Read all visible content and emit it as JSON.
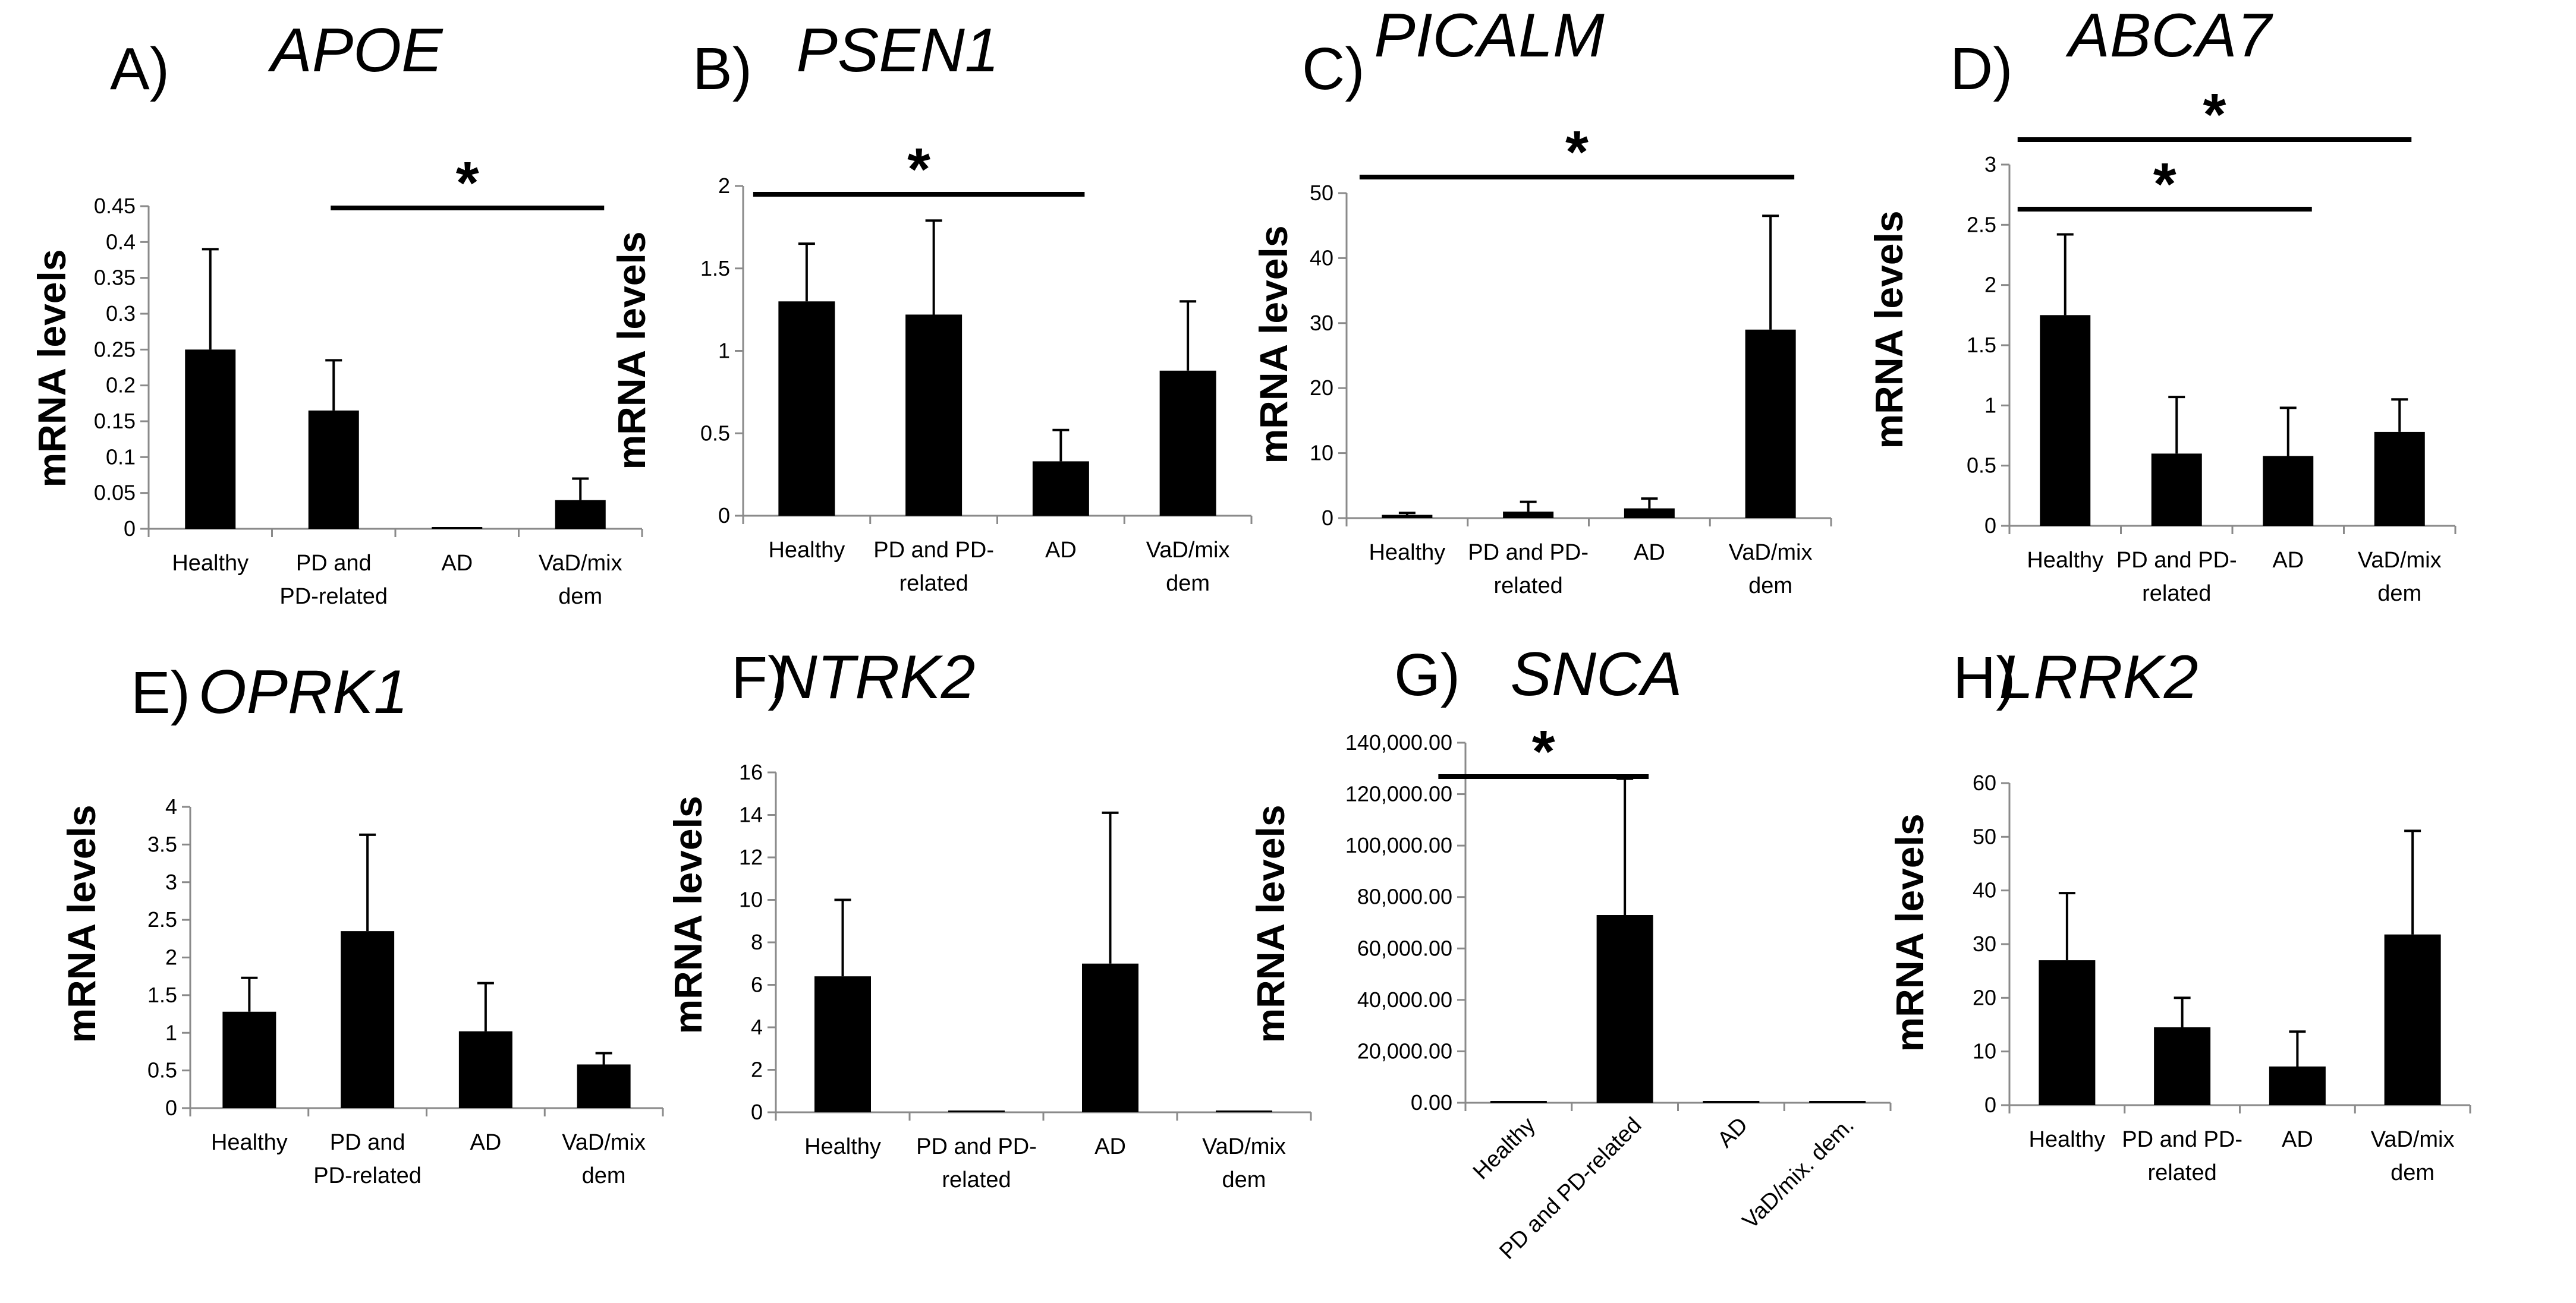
{
  "figure_type": "bar chart panels",
  "chart_data": [
    {
      "type": "bar",
      "panel": "A)",
      "title": "APOE",
      "ylabel": "mRNA levels",
      "categories": [
        "Healthy",
        "PD and PD-related",
        "AD",
        "VaD/mix dem"
      ],
      "category_lines": [
        [
          "Healthy"
        ],
        [
          "PD and",
          "PD-related"
        ],
        [
          "AD"
        ],
        [
          "VaD/mix",
          "dem"
        ]
      ],
      "values": [
        0.25,
        0.165,
        0.002,
        0.04
      ],
      "errors": [
        0.14,
        0.07,
        0.0,
        0.03
      ],
      "ylim": [
        0,
        0.45
      ],
      "ticks": [
        "0",
        "0.05",
        "0.1",
        "0.15",
        "0.2",
        "0.25",
        "0.3",
        "0.35",
        "0.4",
        "0.45"
      ],
      "significance": [
        {
          "from": 1,
          "to": 3,
          "label": "*"
        }
      ]
    },
    {
      "type": "bar",
      "panel": "B)",
      "title": "PSEN1",
      "ylabel": "mRNA levels",
      "categories": [
        "Healthy",
        "PD and PD-related",
        "AD",
        "VaD/mix dem"
      ],
      "category_lines": [
        [
          "Healthy"
        ],
        [
          "PD and PD-",
          "related"
        ],
        [
          "AD"
        ],
        [
          "VaD/mix",
          "dem"
        ]
      ],
      "values": [
        1.3,
        1.22,
        0.33,
        0.88
      ],
      "errors": [
        0.35,
        0.57,
        0.19,
        0.42
      ],
      "ylim": [
        0,
        2
      ],
      "ticks": [
        "0",
        "0.5",
        "1",
        "1.5",
        "2"
      ],
      "significance": [
        {
          "from": 0,
          "to": 2,
          "label": "*"
        }
      ]
    },
    {
      "type": "bar",
      "panel": "C)",
      "title": "PICALM",
      "ylabel": "mRNA levels",
      "categories": [
        "Healthy",
        "PD and PD-related",
        "AD",
        "VaD/mix dem"
      ],
      "category_lines": [
        [
          "Healthy"
        ],
        [
          "PD and PD-",
          "related"
        ],
        [
          "AD"
        ],
        [
          "VaD/mix",
          "dem"
        ]
      ],
      "values": [
        0.5,
        1.0,
        1.5,
        29.0
      ],
      "errors": [
        0.3,
        1.5,
        1.5,
        17.5
      ],
      "ylim": [
        0,
        50
      ],
      "ticks": [
        "0",
        "10",
        "20",
        "30",
        "40",
        "50"
      ],
      "significance": [
        {
          "from": 0,
          "to": 3,
          "label": "*"
        }
      ]
    },
    {
      "type": "bar",
      "panel": "D)",
      "title": "ABCA7",
      "ylabel": "mRNA levels",
      "categories": [
        "Healthy",
        "PD and PD-related",
        "AD",
        "VaD/mix dem"
      ],
      "category_lines": [
        [
          "Healthy"
        ],
        [
          "PD and PD-",
          "related"
        ],
        [
          "AD"
        ],
        [
          "VaD/mix",
          "dem"
        ]
      ],
      "values": [
        1.75,
        0.6,
        0.58,
        0.78
      ],
      "errors": [
        0.67,
        0.47,
        0.4,
        0.27
      ],
      "ylim": [
        0,
        3
      ],
      "ticks": [
        "0",
        "0.5",
        "1",
        "1.5",
        "2",
        "2.5",
        "3"
      ],
      "significance": [
        {
          "from": 0,
          "to": 2,
          "label": "*"
        },
        {
          "from": 0,
          "to": 3,
          "label": "*"
        }
      ]
    },
    {
      "type": "bar",
      "panel": "E)",
      "title": "OPRK1",
      "ylabel": "mRNA levels",
      "categories": [
        "Healthy",
        "PD and PD-related",
        "AD",
        "VaD/mix dem"
      ],
      "category_lines": [
        [
          "Healthy"
        ],
        [
          "PD and",
          "PD-related"
        ],
        [
          "AD"
        ],
        [
          "VaD/mix",
          "dem"
        ]
      ],
      "values": [
        1.28,
        2.35,
        1.02,
        0.58
      ],
      "errors": [
        0.45,
        1.28,
        0.64,
        0.15
      ],
      "ylim": [
        0,
        4
      ],
      "ticks": [
        "0",
        "0.5",
        "1",
        "1.5",
        "2",
        "2.5",
        "3",
        "3.5",
        "4"
      ],
      "significance": []
    },
    {
      "type": "bar",
      "panel": "F)",
      "title": "NTRK2",
      "ylabel": "mRNA levels",
      "categories": [
        "Healthy",
        "PD and PD-related",
        "AD",
        "VaD/mix dem"
      ],
      "category_lines": [
        [
          "Healthy"
        ],
        [
          "PD and PD-",
          "related"
        ],
        [
          "AD"
        ],
        [
          "VaD/mix",
          "dem"
        ]
      ],
      "values": [
        6.4,
        0.05,
        7.0,
        0.05
      ],
      "errors": [
        3.6,
        0.0,
        7.1,
        0.0
      ],
      "ylim": [
        0,
        16
      ],
      "ticks": [
        "0",
        "2",
        "4",
        "6",
        "8",
        "10",
        "12",
        "14",
        "16"
      ],
      "significance": []
    },
    {
      "type": "bar",
      "panel": "G)",
      "title": "SNCA",
      "ylabel": "mRNA levels",
      "categories": [
        "Healthy",
        "PD and PD-related",
        "AD",
        "VaD/mix. dem."
      ],
      "category_lines": [
        [
          "Healthy"
        ],
        [
          "PD and PD-related"
        ],
        [
          "AD"
        ],
        [
          "VaD/mix. dem."
        ]
      ],
      "label_rotation": -45,
      "values": [
        200,
        73000,
        200,
        200
      ],
      "errors": [
        0,
        53000,
        0,
        0
      ],
      "ylim": [
        0,
        140000
      ],
      "ticks": [
        "0.00",
        "20,000.00",
        "40,000.00",
        "60,000.00",
        "80,000.00",
        "100,000.00",
        "120,000.00",
        "140,000.00"
      ],
      "significance": [
        {
          "from": 0,
          "to": 1,
          "label": "*"
        }
      ]
    },
    {
      "type": "bar",
      "panel": "H)",
      "title": "LRRK2",
      "ylabel": "mRNA levels",
      "categories": [
        "Healthy",
        "PD and PD-related",
        "AD",
        "VaD/mix dem"
      ],
      "category_lines": [
        [
          "Healthy"
        ],
        [
          "PD and PD-",
          "related"
        ],
        [
          "AD"
        ],
        [
          "VaD/mix",
          "dem"
        ]
      ],
      "values": [
        27.0,
        14.5,
        7.2,
        31.8
      ],
      "errors": [
        12.5,
        5.5,
        6.5,
        19.3
      ],
      "ylim": [
        0,
        60
      ],
      "ticks": [
        "0",
        "10",
        "20",
        "30",
        "40",
        "50",
        "60"
      ],
      "significance": []
    }
  ]
}
